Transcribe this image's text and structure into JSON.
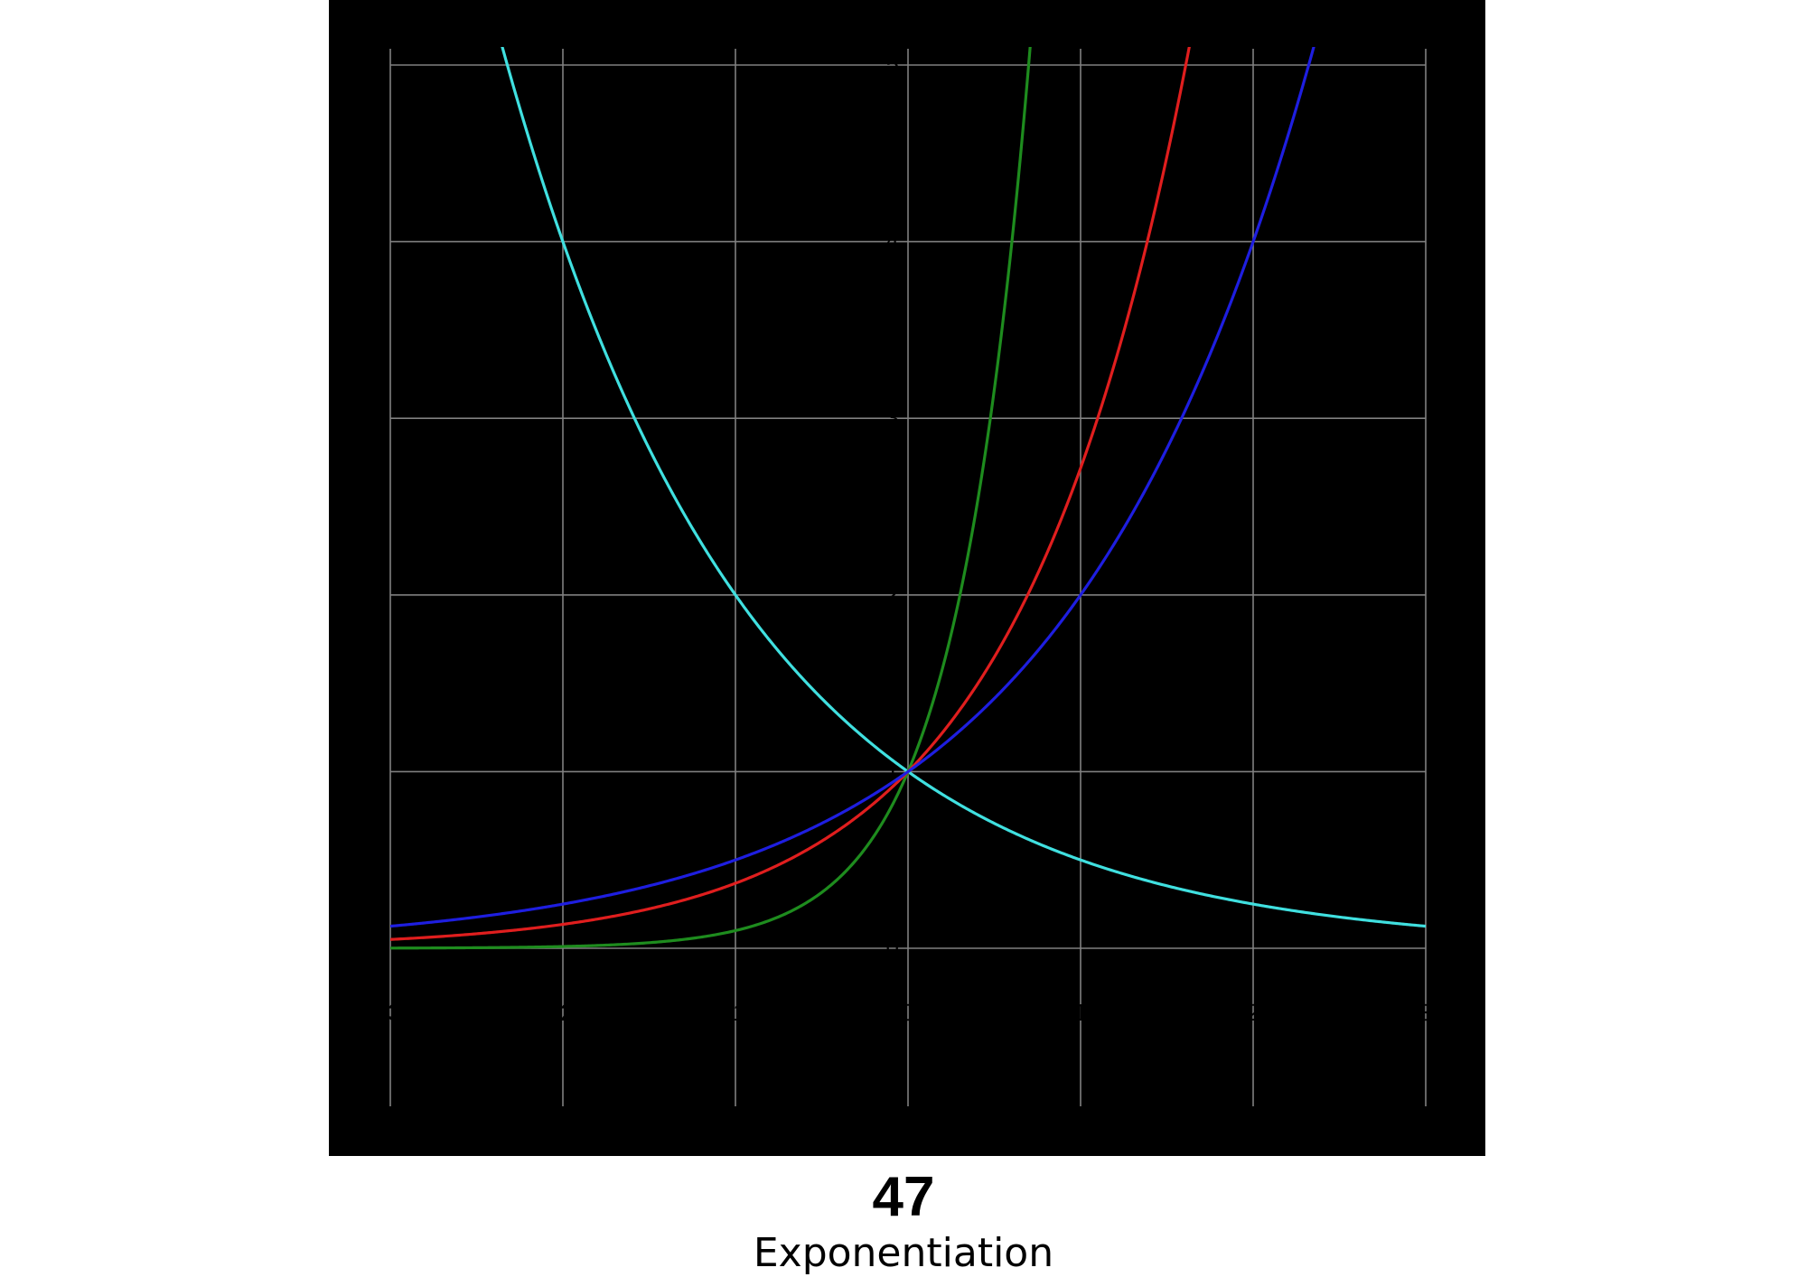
{
  "caption": {
    "number": "47",
    "title": "Exponentiation"
  },
  "chart_data": {
    "type": "line",
    "title": "",
    "xlabel": "",
    "ylabel": "",
    "xlim": [
      -3,
      3
    ],
    "ylim": [
      0,
      5
    ],
    "grid": true,
    "x_ticks": [
      -3,
      -2,
      -1,
      0,
      1,
      2,
      3
    ],
    "y_ticks": [
      0,
      1,
      2,
      3,
      4,
      5
    ],
    "background": "#000000",
    "grid_color": "#808080",
    "series": [
      {
        "base": 0.5,
        "color": "#40e0e0",
        "x": [
          -3,
          -2,
          -1,
          0,
          1,
          2,
          3
        ],
        "y": [
          8,
          4,
          2,
          1,
          0.5,
          0.25,
          0.125
        ]
      },
      {
        "base": 10,
        "color": "#1e8c1e",
        "x": [
          -3,
          -2,
          -1,
          0,
          0.5,
          0.7
        ],
        "y": [
          0.001,
          0.01,
          0.1,
          1,
          3.16,
          5.01
        ]
      },
      {
        "base": 2.718,
        "color": "#e01e1e",
        "x": [
          -3,
          -2,
          -1,
          0,
          1,
          1.6
        ],
        "y": [
          0.05,
          0.135,
          0.368,
          1,
          2.718,
          4.95
        ]
      },
      {
        "base": 2,
        "color": "#1e1ee0",
        "x": [
          -3,
          -2,
          -1,
          0,
          1,
          2,
          2.35
        ],
        "y": [
          0.125,
          0.25,
          0.5,
          1,
          2,
          4,
          5.1
        ]
      }
    ]
  }
}
